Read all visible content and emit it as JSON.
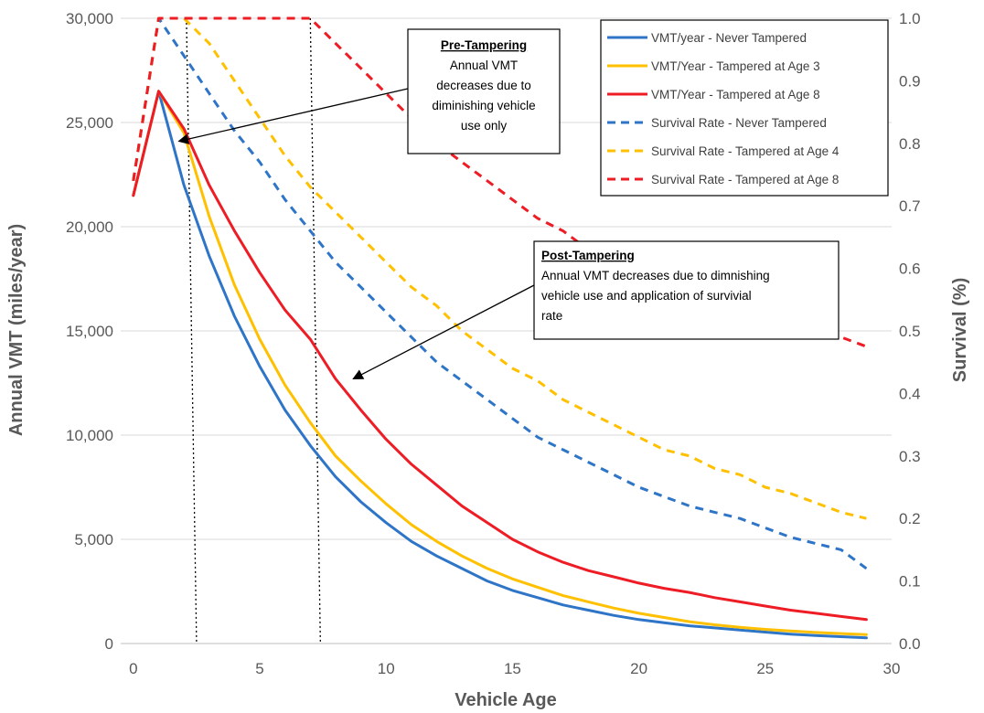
{
  "chart_data": {
    "type": "line",
    "xlabel": "Vehicle Age",
    "ylabel": "Annual VMT (miles/year)",
    "y2label": "Survival (%)",
    "xlim": [
      -0.5,
      30
    ],
    "ylim": [
      0,
      30000
    ],
    "y2lim": [
      0,
      1
    ],
    "x_ticks": [
      "0",
      "5",
      "10",
      "15",
      "20",
      "25",
      "30"
    ],
    "y_ticks": [
      "0",
      "5,000",
      "10,000",
      "15,000",
      "20,000",
      "25,000",
      "30,000"
    ],
    "y2_ticks": [
      "0.0",
      "0.1",
      "0.2",
      "0.3",
      "0.4",
      "0.5",
      "0.6",
      "0.7",
      "0.8",
      "0.9",
      "1.0"
    ],
    "grid": "horizontal",
    "legend_position": "top-right",
    "series": [
      {
        "name": "VMT/year - Never Tampered",
        "axis": "left",
        "style": "solid",
        "color": "#2E75C7",
        "x": [
          0,
          1,
          2,
          3,
          4,
          5,
          6,
          7,
          8,
          9,
          10,
          11,
          12,
          13,
          14,
          15,
          16,
          17,
          18,
          19,
          20,
          21,
          22,
          23,
          24,
          25,
          26,
          27,
          28,
          29
        ],
        "y": [
          21500,
          26500,
          22000,
          18600,
          15700,
          13300,
          11200,
          9500,
          8000,
          6800,
          5800,
          4900,
          4200,
          3600,
          3000,
          2550,
          2200,
          1850,
          1600,
          1350,
          1150,
          1000,
          850,
          750,
          650,
          550,
          450,
          380,
          330,
          270
        ]
      },
      {
        "name": "VMT/Year - Tampered at Age 3",
        "axis": "left",
        "style": "solid",
        "color": "#FFC000",
        "x": [
          0,
          1,
          2,
          3,
          4,
          5,
          6,
          7,
          8,
          9,
          10,
          11,
          12,
          13,
          14,
          15,
          16,
          17,
          18,
          19,
          20,
          21,
          22,
          23,
          24,
          25,
          26,
          27,
          28,
          29
        ],
        "y": [
          21500,
          26500,
          24500,
          20500,
          17200,
          14600,
          12400,
          10600,
          9000,
          7800,
          6700,
          5700,
          4900,
          4200,
          3600,
          3100,
          2700,
          2300,
          2000,
          1700,
          1450,
          1250,
          1050,
          900,
          780,
          680,
          600,
          530,
          480,
          430
        ]
      },
      {
        "name": "VMT/Year - Tampered at Age 8",
        "axis": "left",
        "style": "solid",
        "color": "#EE1C24",
        "x": [
          0,
          1,
          2,
          3,
          4,
          5,
          6,
          7,
          8,
          9,
          10,
          11,
          12,
          13,
          14,
          15,
          16,
          17,
          18,
          19,
          20,
          21,
          22,
          23,
          24,
          25,
          26,
          27,
          28,
          29
        ],
        "y": [
          21500,
          26500,
          24700,
          22000,
          19800,
          17800,
          16000,
          14600,
          12700,
          11200,
          9800,
          8600,
          7600,
          6600,
          5800,
          5000,
          4400,
          3900,
          3500,
          3200,
          2900,
          2650,
          2450,
          2200,
          2000,
          1800,
          1600,
          1450,
          1300,
          1150
        ]
      },
      {
        "name": "Survival Rate - Never Tampered",
        "axis": "right",
        "style": "dashed",
        "color": "#2E75C7",
        "x": [
          0,
          1,
          2,
          3,
          4,
          5,
          6,
          7,
          8,
          9,
          10,
          11,
          12,
          13,
          14,
          15,
          16,
          17,
          18,
          19,
          20,
          21,
          22,
          23,
          24,
          25,
          26,
          27,
          28,
          29
        ],
        "y": [
          0.74,
          1.0,
          0.94,
          0.88,
          0.82,
          0.77,
          0.71,
          0.66,
          0.61,
          0.57,
          0.53,
          0.49,
          0.45,
          0.42,
          0.39,
          0.36,
          0.33,
          0.31,
          0.29,
          0.27,
          0.25,
          0.235,
          0.22,
          0.21,
          0.2,
          0.185,
          0.17,
          0.16,
          0.15,
          0.12
        ]
      },
      {
        "name": "Survival Rate - Tampered at Age 4",
        "axis": "right",
        "style": "dashed",
        "color": "#FFC000",
        "x": [
          0,
          1,
          2,
          3,
          4,
          5,
          6,
          7,
          8,
          9,
          10,
          11,
          12,
          13,
          14,
          15,
          16,
          17,
          18,
          19,
          20,
          21,
          22,
          23,
          24,
          25,
          26,
          27,
          28,
          29
        ],
        "y": [
          0.74,
          1.0,
          1.0,
          0.96,
          0.9,
          0.84,
          0.78,
          0.73,
          0.69,
          0.65,
          0.61,
          0.57,
          0.54,
          0.5,
          0.47,
          0.44,
          0.42,
          0.39,
          0.37,
          0.35,
          0.33,
          0.31,
          0.3,
          0.28,
          0.27,
          0.25,
          0.24,
          0.225,
          0.21,
          0.2
        ]
      },
      {
        "name": "Survival Rate - Tampered at Age 8",
        "axis": "right",
        "style": "dashed",
        "color": "#EE1C24",
        "x": [
          0,
          1,
          2,
          3,
          4,
          5,
          6,
          7,
          8,
          9,
          10,
          11,
          12,
          13,
          14,
          15,
          16,
          17,
          18,
          19,
          20,
          21,
          22,
          23,
          24,
          25,
          26,
          27,
          28,
          29
        ],
        "y": [
          0.74,
          1.0,
          1.0,
          1.0,
          1.0,
          1.0,
          1.0,
          1.0,
          0.96,
          0.92,
          0.88,
          0.84,
          0.8,
          0.77,
          0.74,
          0.71,
          0.68,
          0.66,
          0.63,
          0.61,
          0.59,
          0.57,
          0.56,
          0.55,
          0.53,
          0.52,
          0.51,
          0.5,
          0.49,
          0.475
        ]
      }
    ],
    "reference_lines": [
      {
        "x_top": 2.1,
        "x_bottom": 2.5
      },
      {
        "x_top": 7.0,
        "x_bottom": 7.4
      }
    ],
    "annotations": [
      {
        "title": "Pre-Tampering",
        "lines": [
          "Annual VMT",
          "decreases due to",
          "diminishing vehicle",
          "use only"
        ],
        "points_to": {
          "x": 1.8,
          "y": 24100
        }
      },
      {
        "title": "Post-Tampering",
        "lines": [
          "Annual VMT decreases due to dimnishing",
          "vehicle use and application of survivial",
          "rate"
        ],
        "points_to": {
          "x": 8.7,
          "y": 12700
        }
      }
    ]
  }
}
